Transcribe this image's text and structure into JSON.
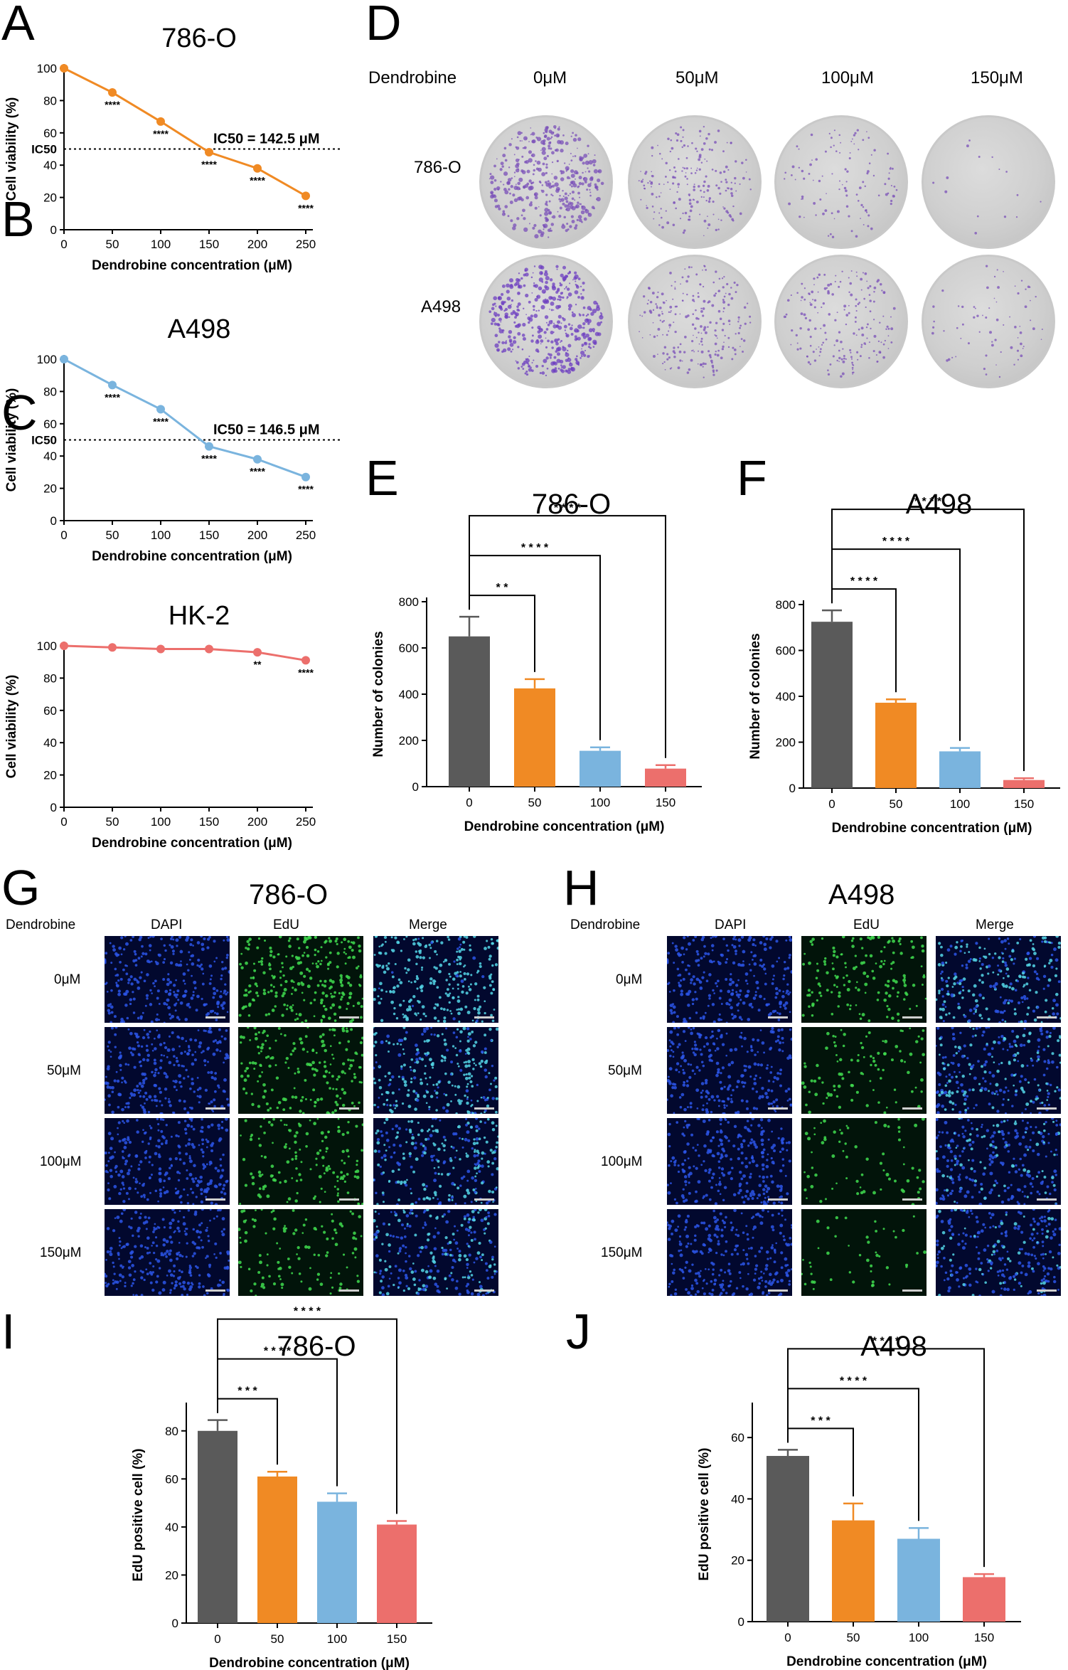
{
  "panels": {
    "A": "A",
    "B": "B",
    "C": "C",
    "D": "D",
    "E": "E",
    "F": "F",
    "G": "G",
    "H": "H",
    "I": "I",
    "J": "J"
  },
  "viability_xlabel": "Dendrobine concentration (μM)",
  "viability_ylabel": "Cell viability (%)",
  "colonies_ylabel": "Number of colonies",
  "edu_ylabel": "EdU positive cell (%)",
  "bar_xlabel": "Dendrobine concentration (μM)",
  "panelD": {
    "treatment_label": "Dendrobine",
    "columns": [
      "0μM",
      "50μM",
      "100μM",
      "150μM"
    ],
    "rows": [
      "786-O",
      "A498"
    ]
  },
  "panelG": {
    "title": "786-O",
    "treatment_label": "Dendrobine",
    "channels": [
      "DAPI",
      "EdU",
      "Merge"
    ],
    "rows": [
      "0μM",
      "50μM",
      "100μM",
      "150μM"
    ]
  },
  "panelH": {
    "title": "A498",
    "treatment_label": "Dendrobine",
    "channels": [
      "DAPI",
      "EdU",
      "Merge"
    ],
    "rows": [
      "0μM",
      "50μM",
      "100μM",
      "150μM"
    ]
  },
  "colors": {
    "orange": "#f08a24",
    "blue": "#7ab4de",
    "red": "#ec6f6c",
    "gray": "#5a5a5a"
  },
  "chart_data": [
    {
      "id": "A",
      "type": "line",
      "title": "786-O",
      "x": [
        0,
        50,
        100,
        150,
        200,
        250
      ],
      "series": [
        {
          "values": [
            100,
            85,
            67,
            48,
            38,
            21
          ]
        }
      ],
      "significance": [
        "",
        "****",
        "****",
        "****",
        "****",
        "****"
      ],
      "xlim": [
        0,
        250
      ],
      "ylim": [
        0,
        100
      ],
      "xticks": [
        0,
        50,
        100,
        150,
        200,
        250
      ],
      "yticks": [
        0,
        20,
        40,
        60,
        80,
        100
      ],
      "reference_line": {
        "y": 50,
        "label": "IC50"
      },
      "annotation": "IC50 = 142.5 μM",
      "color": "#f08a24"
    },
    {
      "id": "B",
      "type": "line",
      "title": "A498",
      "x": [
        0,
        50,
        100,
        150,
        200,
        250
      ],
      "series": [
        {
          "values": [
            100,
            84,
            69,
            46,
            38,
            27
          ]
        }
      ],
      "significance": [
        "",
        "****",
        "****",
        "****",
        "****",
        "****"
      ],
      "xlim": [
        0,
        250
      ],
      "ylim": [
        0,
        100
      ],
      "xticks": [
        0,
        50,
        100,
        150,
        200,
        250
      ],
      "yticks": [
        0,
        20,
        40,
        60,
        80,
        100
      ],
      "reference_line": {
        "y": 50,
        "label": "IC50"
      },
      "annotation": "IC50 = 146.5 μM",
      "color": "#7ab4de"
    },
    {
      "id": "C",
      "type": "line",
      "title": "HK-2",
      "x": [
        0,
        50,
        100,
        150,
        200,
        250
      ],
      "series": [
        {
          "values": [
            100,
            99,
            98,
            98,
            96,
            91
          ]
        }
      ],
      "significance": [
        "",
        "",
        "",
        "",
        "**",
        "****"
      ],
      "xlim": [
        0,
        250
      ],
      "ylim": [
        0,
        100
      ],
      "xticks": [
        0,
        50,
        100,
        150,
        200,
        250
      ],
      "yticks": [
        0,
        20,
        40,
        60,
        80,
        100
      ],
      "color": "#ec6f6c"
    },
    {
      "id": "E",
      "type": "bar",
      "title": "786-O",
      "categories": [
        "0",
        "50",
        "100",
        "150"
      ],
      "values": [
        650,
        425,
        155,
        78
      ],
      "errors": [
        85,
        40,
        15,
        15
      ],
      "ylim": [
        0,
        800
      ],
      "yticks": [
        0,
        200,
        400,
        600,
        800
      ],
      "comparisons": [
        {
          "to": 1,
          "label": "* *"
        },
        {
          "to": 2,
          "label": "* * * *"
        },
        {
          "to": 3,
          "label": "* * * *"
        }
      ]
    },
    {
      "id": "F",
      "type": "bar",
      "title": "A498",
      "categories": [
        "0",
        "50",
        "100",
        "150"
      ],
      "values": [
        725,
        372,
        160,
        35
      ],
      "errors": [
        50,
        15,
        15,
        8
      ],
      "ylim": [
        0,
        800
      ],
      "yticks": [
        0,
        200,
        400,
        600,
        800
      ],
      "comparisons": [
        {
          "to": 1,
          "label": "* * * *"
        },
        {
          "to": 2,
          "label": "* * * *"
        },
        {
          "to": 3,
          "label": "* * * *"
        }
      ]
    },
    {
      "id": "I",
      "type": "bar",
      "title": "786-O",
      "categories": [
        "0",
        "50",
        "100",
        "150"
      ],
      "values": [
        80,
        61,
        50.5,
        41
      ],
      "errors": [
        4.5,
        2,
        3.5,
        1.5
      ],
      "ylim": [
        0,
        90
      ],
      "yticks": [
        0,
        20,
        40,
        60,
        80
      ],
      "comparisons": [
        {
          "to": 1,
          "label": "* * *"
        },
        {
          "to": 2,
          "label": "* * * *"
        },
        {
          "to": 3,
          "label": "* * * *"
        }
      ]
    },
    {
      "id": "J",
      "type": "bar",
      "title": "A498",
      "categories": [
        "0",
        "50",
        "100",
        "150"
      ],
      "values": [
        54,
        33,
        27,
        14.5
      ],
      "errors": [
        2,
        5.5,
        3.5,
        1
      ],
      "ylim": [
        0,
        70
      ],
      "yticks": [
        0,
        20,
        40,
        60
      ],
      "comparisons": [
        {
          "to": 1,
          "label": "* * *"
        },
        {
          "to": 2,
          "label": "* * * *"
        },
        {
          "to": 3,
          "label": "* * * *"
        }
      ]
    }
  ]
}
